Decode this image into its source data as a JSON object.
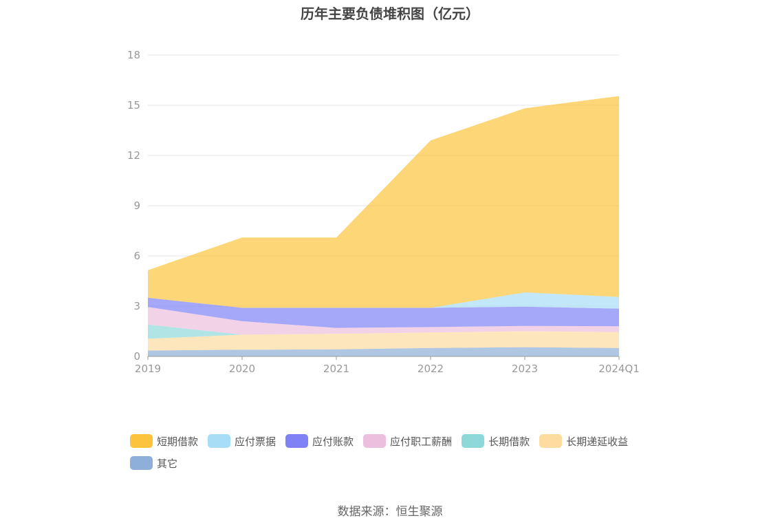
{
  "chart_data": {
    "type": "area",
    "stacked": true,
    "title": "历年主要负债堆积图（亿元）",
    "categories": [
      "2019",
      "2020",
      "2021",
      "2022",
      "2023",
      "2024Q1"
    ],
    "ylim": [
      0,
      18
    ],
    "yticks": [
      "0",
      "3",
      "6",
      "9",
      "12",
      "15",
      "18"
    ],
    "grid": true,
    "legend_position": "bottom",
    "series": [
      {
        "name": "其它",
        "color": "#8eafd9",
        "values": [
          0.35,
          0.4,
          0.42,
          0.5,
          0.55,
          0.5
        ]
      },
      {
        "name": "长期递延收益",
        "color": "#fedc9f",
        "values": [
          0.7,
          0.9,
          0.93,
          0.93,
          0.95,
          0.95
        ]
      },
      {
        "name": "长期借款",
        "color": "#8ed8da",
        "values": [
          0.85,
          0.0,
          0.0,
          0.0,
          0.0,
          0.0
        ]
      },
      {
        "name": "应付职工薪酬",
        "color": "#ebbfdd",
        "values": [
          1.05,
          0.8,
          0.35,
          0.32,
          0.32,
          0.35
        ]
      },
      {
        "name": "应付账款",
        "color": "#7f82f5",
        "values": [
          0.55,
          0.8,
          1.2,
          1.15,
          1.15,
          1.05
        ]
      },
      {
        "name": "应付票据",
        "color": "#a7ddf7",
        "values": [
          0.0,
          0.0,
          0.0,
          0.0,
          0.85,
          0.7
        ]
      },
      {
        "name": "短期借款",
        "color": "#fcc43d",
        "values": [
          1.65,
          4.2,
          4.2,
          10.0,
          11.0,
          12.0
        ]
      }
    ],
    "legend": [
      {
        "name": "短期借款",
        "color": "#fcc43d"
      },
      {
        "name": "应付票据",
        "color": "#a7ddf7"
      },
      {
        "name": "应付账款",
        "color": "#7f82f5"
      },
      {
        "name": "应付职工薪酬",
        "color": "#ebbfdd"
      },
      {
        "name": "长期借款",
        "color": "#8ed8da"
      },
      {
        "name": "长期递延收益",
        "color": "#fedc9f"
      },
      {
        "name": "其它",
        "color": "#8eafd9"
      }
    ]
  },
  "source": "数据来源：恒生聚源"
}
